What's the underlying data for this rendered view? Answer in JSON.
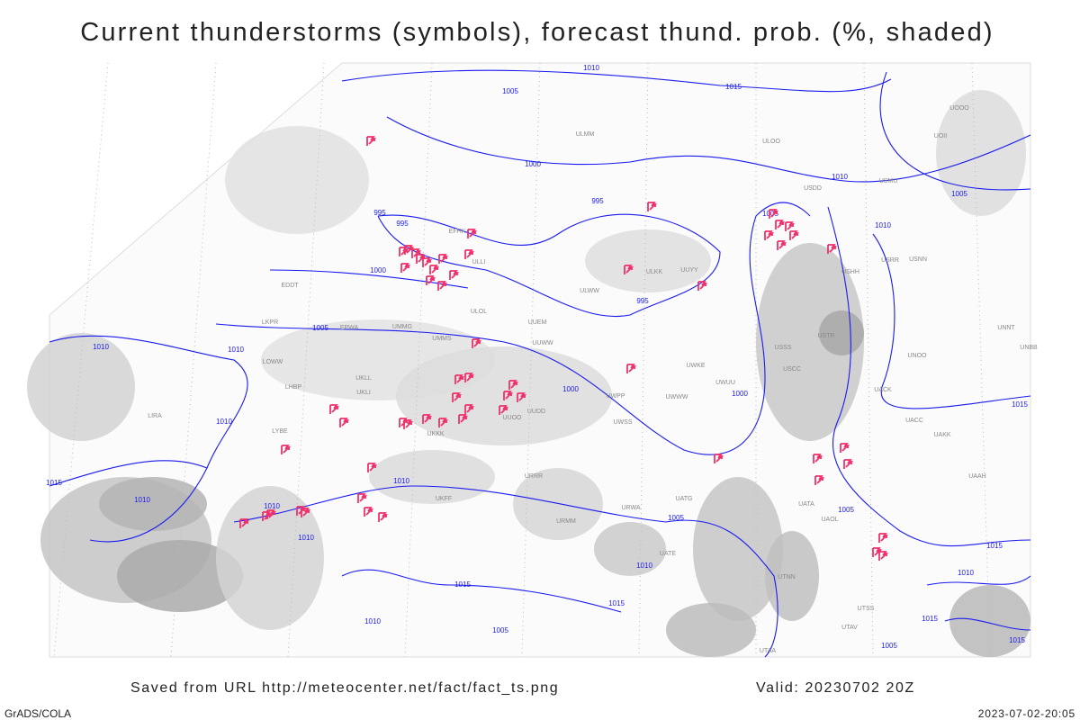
{
  "title": "Current thunderstorms (symbols), forecast thund. prob. (%, shaded)",
  "footer": {
    "source": "Saved from URL http://meteocenter.net/fact/fact_ts.png",
    "valid": "Valid: 20230702 20Z",
    "software": "GrADS/COLA",
    "timestamp": "2023-07-02-20:05"
  },
  "isobar_labels": [
    "1010",
    "1005",
    "1015",
    "1000",
    "1010",
    "1005",
    "995",
    "995",
    "995",
    "1005",
    "1010",
    "1000",
    "995",
    "1005",
    "1010",
    "1010",
    "1000",
    "1000",
    "1015",
    "1010",
    "1015",
    "1010",
    "1010",
    "1010",
    "1005",
    "1005",
    "1015",
    "1010",
    "1010",
    "1015",
    "1015",
    "1010",
    "1010",
    "1005",
    "1015",
    "1015",
    "1005"
  ],
  "stations": [
    "ULMM",
    "ULOO",
    "USDD",
    "USMU",
    "UOOO",
    "UOII",
    "ULLI",
    "ULKK",
    "UUYY",
    "ULWW",
    "ULOL",
    "UUEM",
    "UUWW",
    "USRR",
    "USNN",
    "USHH",
    "USTR",
    "UNOO",
    "USCC",
    "UACK",
    "UACC",
    "UAKK",
    "UAAH",
    "UATA",
    "UAOL",
    "UATG",
    "UATE",
    "URMM",
    "URWA",
    "URRR",
    "UKFF",
    "UKKK",
    "UUDD",
    "UUOO",
    "UWKE",
    "UWWW",
    "UWPP",
    "UWSS",
    "UWUU",
    "USSS",
    "UNBB",
    "UNNT",
    "UMMS",
    "UMMG",
    "UKLL",
    "UKLI",
    "EPWA",
    "LKPR",
    "LHBP",
    "LOWW",
    "LIRA",
    "LYBE",
    "UTAA",
    "UTAV",
    "UTSS",
    "UTNN",
    "EDDT",
    "EFHK"
  ]
}
